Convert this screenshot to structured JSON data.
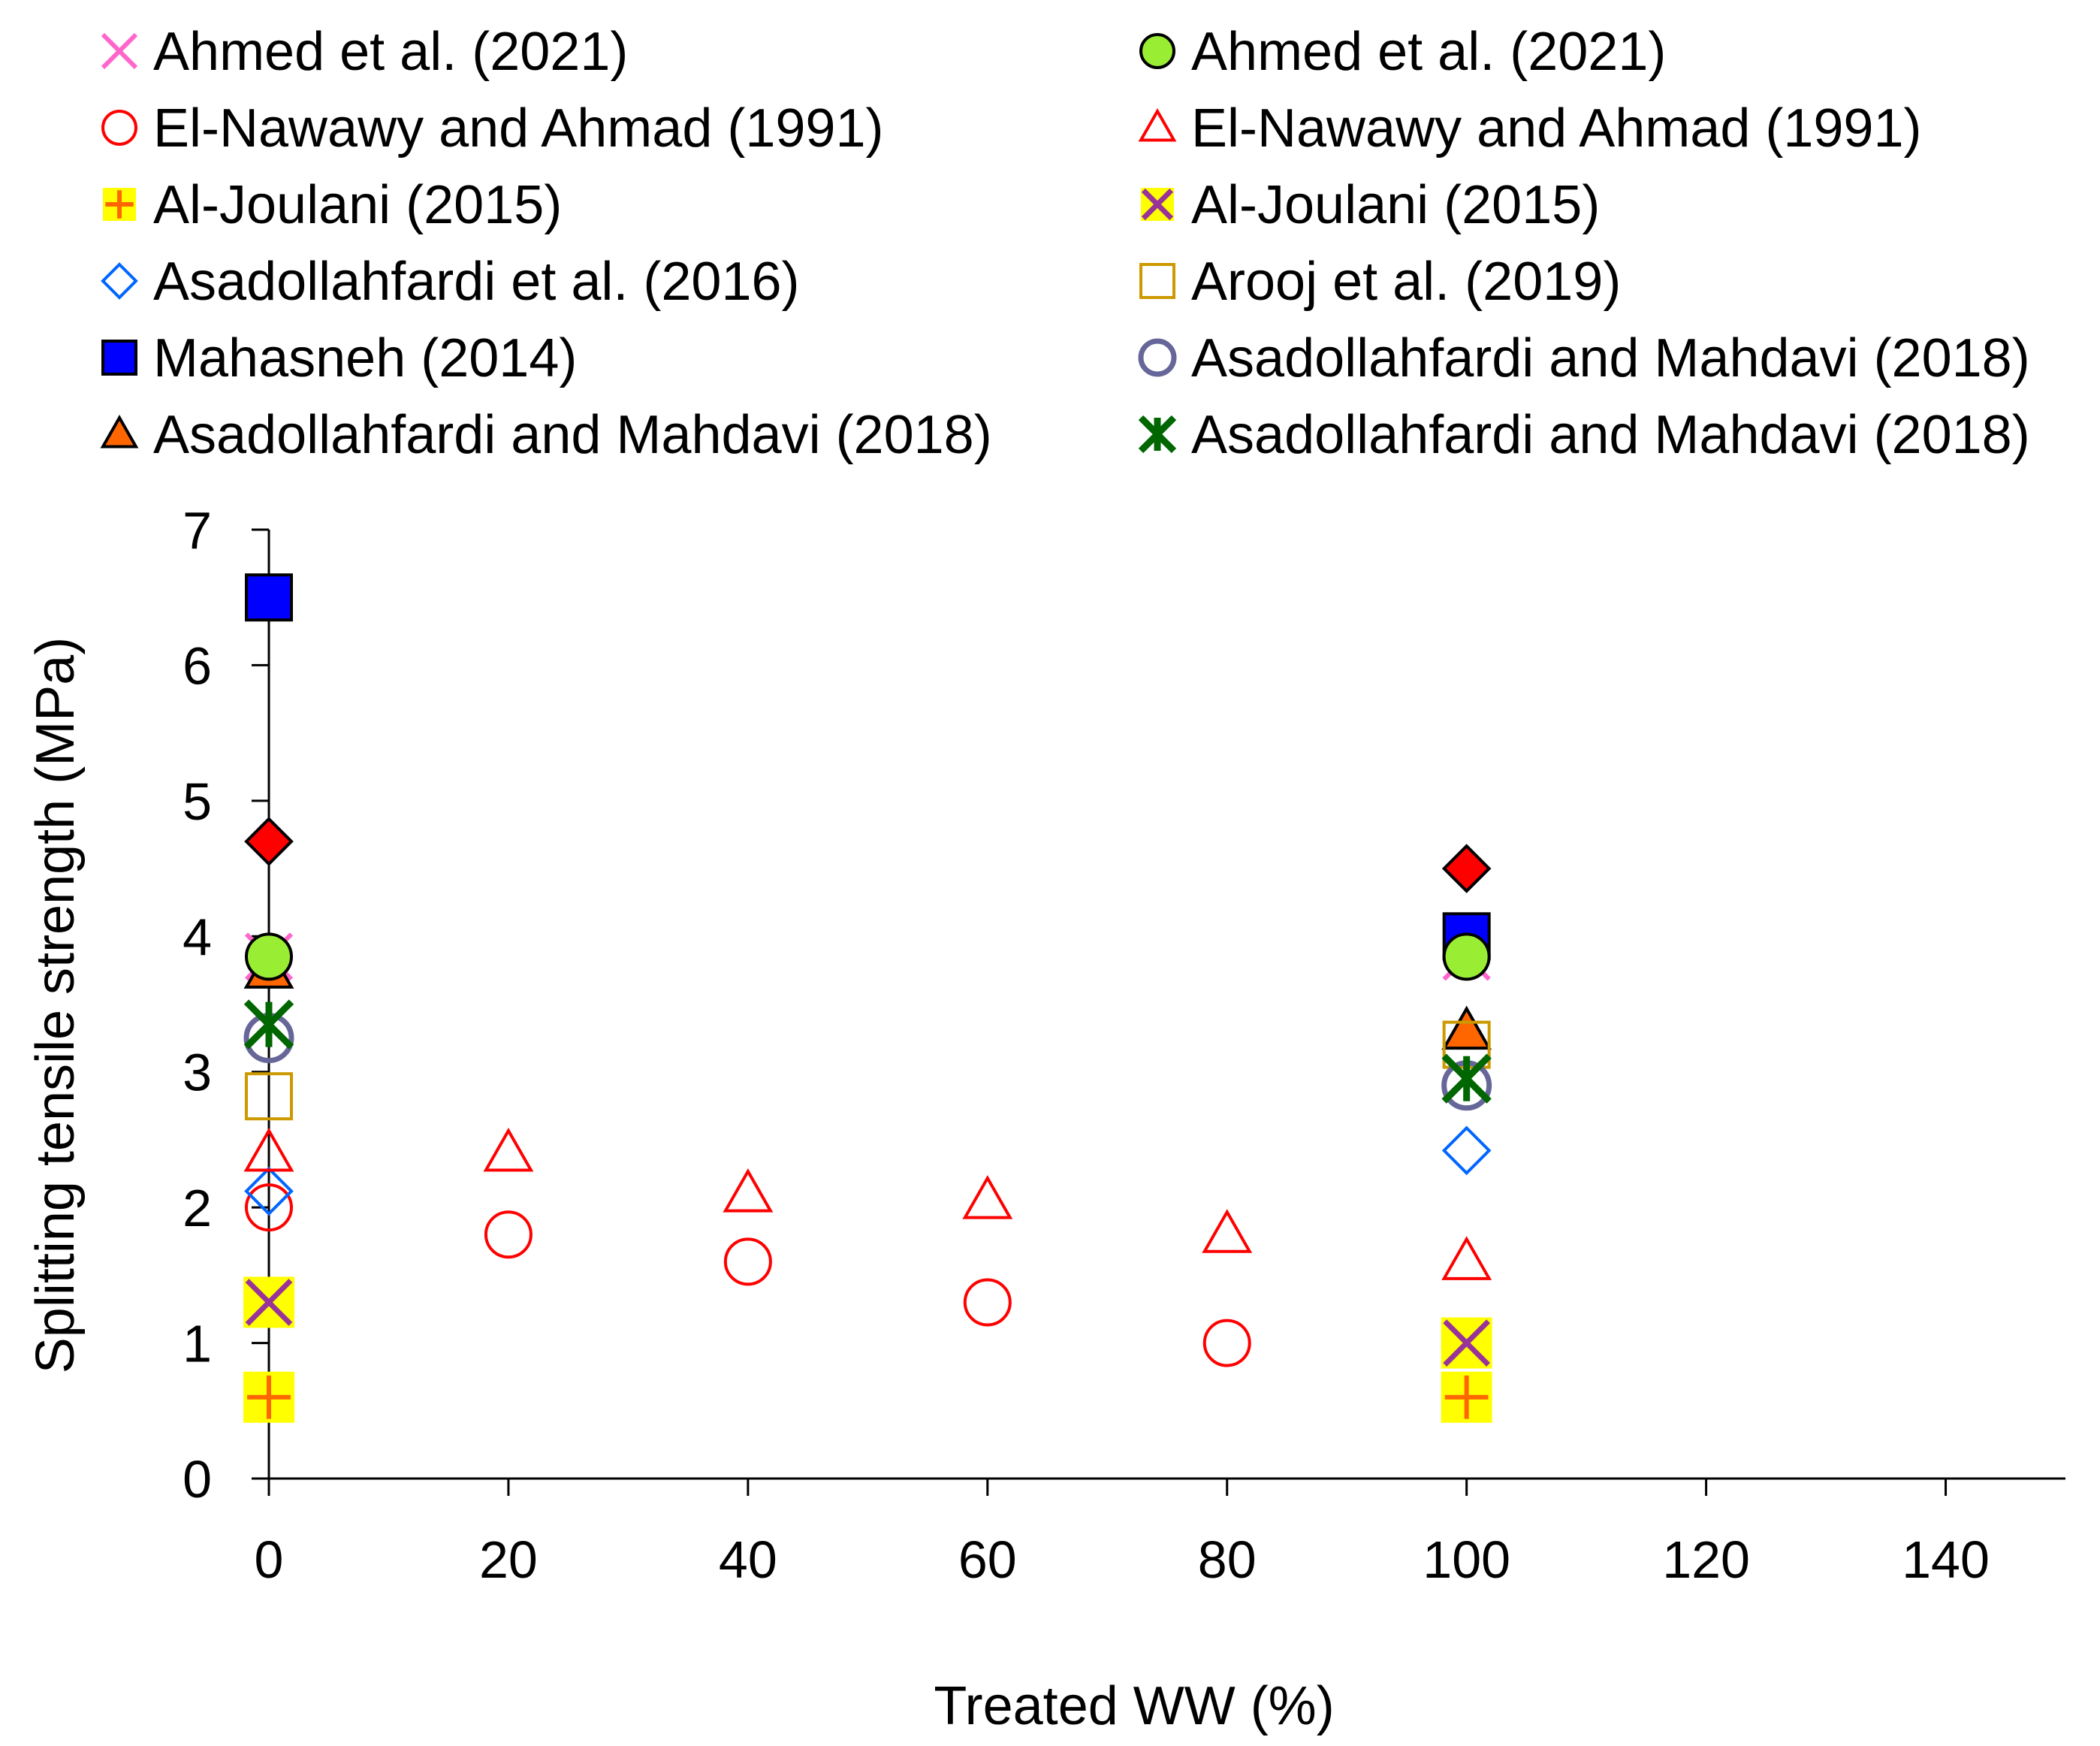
{
  "chart_data": {
    "type": "scatter",
    "title": "",
    "xlabel": "Treated WW (%)",
    "ylabel": "Splitting tensile strength (MPa)",
    "xlim": [
      0,
      150
    ],
    "ylim": [
      0,
      7
    ],
    "xticks": [
      0,
      20,
      40,
      60,
      80,
      100,
      120,
      140
    ],
    "yticks": [
      0,
      1,
      2,
      3,
      4,
      5,
      6,
      7
    ],
    "grid": false,
    "legend_position": "top",
    "legend_columns": 2,
    "series": [
      {
        "name": "Ahmed et al. (2021)",
        "marker": "x",
        "color": "#ff66cc",
        "points": [
          {
            "x": 0,
            "y": 3.85
          },
          {
            "x": 100,
            "y": 3.85
          }
        ]
      },
      {
        "name": "El-Nawawy and Ahmad (1991)",
        "marker": "circle-open",
        "color": "#ff0000",
        "points": [
          {
            "x": 0,
            "y": 2.0
          },
          {
            "x": 20,
            "y": 1.8
          },
          {
            "x": 40,
            "y": 1.6
          },
          {
            "x": 60,
            "y": 1.3
          },
          {
            "x": 80,
            "y": 1.0
          }
        ]
      },
      {
        "name": "Al-Joulani (2015)",
        "marker": "plus-on-yellow",
        "color": "#ff6600",
        "fill": "#ffff00",
        "points": [
          {
            "x": 0,
            "y": 0.6
          },
          {
            "x": 100,
            "y": 0.6
          }
        ]
      },
      {
        "name": "Asadollahfardi et al. (2016)",
        "marker": "diamond-open",
        "color": "#0066ff",
        "points": [
          {
            "x": 0,
            "y": 2.12
          },
          {
            "x": 100,
            "y": 2.42
          }
        ]
      },
      {
        "name": "Mahasneh (2014)",
        "marker": "square-filled",
        "color": "#0000ff",
        "points": [
          {
            "x": 0,
            "y": 6.5
          },
          {
            "x": 100,
            "y": 4.0
          }
        ]
      },
      {
        "name": "Asadollahfardi and Mahdavi (2018)",
        "marker": "triangle-filled",
        "color": "#ff6600",
        "points": [
          {
            "x": 0,
            "y": 3.75
          },
          {
            "x": 100,
            "y": 3.3
          }
        ]
      },
      {
        "name": "Ahmed et al. (2021)",
        "marker": "circle-filled",
        "color": "#99ee33",
        "points": [
          {
            "x": 0,
            "y": 3.85
          },
          {
            "x": 100,
            "y": 3.85
          }
        ]
      },
      {
        "name": "El-Nawawy and Ahmad (1991)",
        "marker": "triangle-open",
        "color": "#ff0000",
        "points": [
          {
            "x": 0,
            "y": 2.4
          },
          {
            "x": 20,
            "y": 2.4
          },
          {
            "x": 40,
            "y": 2.1
          },
          {
            "x": 60,
            "y": 2.05
          },
          {
            "x": 80,
            "y": 1.8
          },
          {
            "x": 100,
            "y": 1.6
          }
        ]
      },
      {
        "name": "Al-Joulani (2015)",
        "marker": "x-on-yellow",
        "color": "#993399",
        "fill": "#ffff00",
        "points": [
          {
            "x": 0,
            "y": 1.3
          },
          {
            "x": 100,
            "y": 1.0
          }
        ]
      },
      {
        "name": "Arooj et al. (2019)",
        "marker": "square-open",
        "color": "#cc9900",
        "points": [
          {
            "x": 0,
            "y": 2.82
          },
          {
            "x": 100,
            "y": 3.2
          }
        ]
      },
      {
        "name": "Asadollahfardi and Mahdavi (2018)",
        "marker": "circle-thick-open",
        "color": "#666699",
        "points": [
          {
            "x": 0,
            "y": 3.25
          },
          {
            "x": 100,
            "y": 2.9
          }
        ]
      },
      {
        "name": "Asadollahfardi and Mahdavi (2018)",
        "marker": "asterisk",
        "color": "#006600",
        "points": [
          {
            "x": 0,
            "y": 3.35
          },
          {
            "x": 100,
            "y": 2.95
          }
        ]
      },
      {
        "name": "",
        "marker": "diamond-filled",
        "color": "#ff0000",
        "in_legend": false,
        "points": [
          {
            "x": 0,
            "y": 4.7
          },
          {
            "x": 100,
            "y": 4.5
          }
        ]
      }
    ]
  }
}
